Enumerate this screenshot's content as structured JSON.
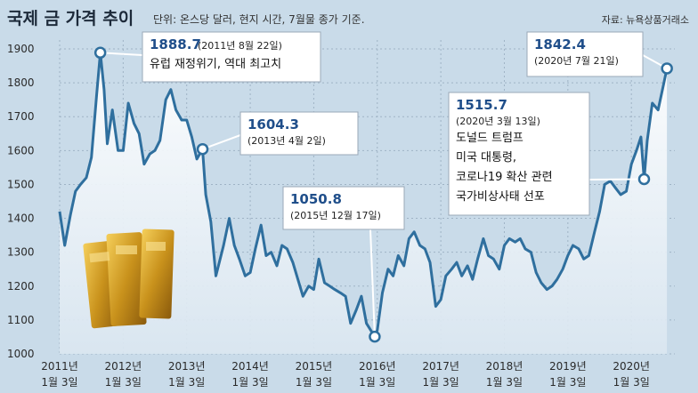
{
  "chart_data": {
    "type": "area",
    "title": "국제 금 가격 추이",
    "unit_note": "단위: 온스당 달러, 현지 시간, 7월물 종가 기준.",
    "source": "자료: 뉴욕상품거래소",
    "ylim": [
      1000,
      1900
    ],
    "yticks": [
      1000,
      1100,
      1200,
      1300,
      1400,
      1500,
      1600,
      1700,
      1800,
      1900
    ],
    "xlim": [
      2011.0,
      2020.6
    ],
    "xticks": [
      {
        "x": 2011.0,
        "year": "2011년",
        "date": "1월 3일"
      },
      {
        "x": 2012.0,
        "year": "2012년",
        "date": "1월 3일"
      },
      {
        "x": 2013.0,
        "year": "2013년",
        "date": "1월 3일"
      },
      {
        "x": 2014.0,
        "year": "2014년",
        "date": "1월 3일"
      },
      {
        "x": 2015.0,
        "year": "2015년",
        "date": "1월 3일"
      },
      {
        "x": 2016.0,
        "year": "2016년",
        "date": "1월 3일"
      },
      {
        "x": 2017.0,
        "year": "2017년",
        "date": "1월 3일"
      },
      {
        "x": 2018.0,
        "year": "2018년",
        "date": "1월 3일"
      },
      {
        "x": 2019.0,
        "year": "2019년",
        "date": "1월 3일"
      },
      {
        "x": 2020.0,
        "year": "2020년",
        "date": "1월 3일"
      }
    ],
    "series": [
      {
        "values": [
          [
            2011.0,
            1420
          ],
          [
            2011.08,
            1320
          ],
          [
            2011.17,
            1410
          ],
          [
            2011.25,
            1480
          ],
          [
            2011.33,
            1500
          ],
          [
            2011.42,
            1520
          ],
          [
            2011.5,
            1580
          ],
          [
            2011.58,
            1760
          ],
          [
            2011.64,
            1888.7
          ],
          [
            2011.7,
            1780
          ],
          [
            2011.75,
            1620
          ],
          [
            2011.83,
            1720
          ],
          [
            2011.92,
            1600
          ],
          [
            2012.0,
            1600
          ],
          [
            2012.08,
            1740
          ],
          [
            2012.17,
            1680
          ],
          [
            2012.25,
            1650
          ],
          [
            2012.33,
            1560
          ],
          [
            2012.42,
            1590
          ],
          [
            2012.5,
            1600
          ],
          [
            2012.58,
            1630
          ],
          [
            2012.67,
            1750
          ],
          [
            2012.75,
            1780
          ],
          [
            2012.83,
            1720
          ],
          [
            2012.92,
            1690
          ],
          [
            2013.0,
            1690
          ],
          [
            2013.08,
            1640
          ],
          [
            2013.16,
            1575
          ],
          [
            2013.25,
            1604.3
          ],
          [
            2013.3,
            1470
          ],
          [
            2013.38,
            1390
          ],
          [
            2013.46,
            1230
          ],
          [
            2013.58,
            1320
          ],
          [
            2013.67,
            1400
          ],
          [
            2013.75,
            1320
          ],
          [
            2013.83,
            1280
          ],
          [
            2013.92,
            1230
          ],
          [
            2014.0,
            1240
          ],
          [
            2014.08,
            1310
          ],
          [
            2014.17,
            1380
          ],
          [
            2014.25,
            1290
          ],
          [
            2014.33,
            1300
          ],
          [
            2014.42,
            1260
          ],
          [
            2014.5,
            1320
          ],
          [
            2014.58,
            1310
          ],
          [
            2014.67,
            1270
          ],
          [
            2014.75,
            1220
          ],
          [
            2014.83,
            1170
          ],
          [
            2014.92,
            1200
          ],
          [
            2015.0,
            1190
          ],
          [
            2015.08,
            1280
          ],
          [
            2015.17,
            1210
          ],
          [
            2015.25,
            1200
          ],
          [
            2015.33,
            1190
          ],
          [
            2015.42,
            1180
          ],
          [
            2015.5,
            1170
          ],
          [
            2015.58,
            1090
          ],
          [
            2015.67,
            1130
          ],
          [
            2015.75,
            1170
          ],
          [
            2015.83,
            1090
          ],
          [
            2015.96,
            1050.8
          ],
          [
            2016.0,
            1070
          ],
          [
            2016.08,
            1180
          ],
          [
            2016.17,
            1250
          ],
          [
            2016.25,
            1230
          ],
          [
            2016.33,
            1290
          ],
          [
            2016.42,
            1260
          ],
          [
            2016.5,
            1340
          ],
          [
            2016.58,
            1360
          ],
          [
            2016.67,
            1320
          ],
          [
            2016.75,
            1310
          ],
          [
            2016.83,
            1270
          ],
          [
            2016.92,
            1140
          ],
          [
            2017.0,
            1160
          ],
          [
            2017.08,
            1230
          ],
          [
            2017.17,
            1250
          ],
          [
            2017.25,
            1270
          ],
          [
            2017.33,
            1230
          ],
          [
            2017.42,
            1260
          ],
          [
            2017.5,
            1220
          ],
          [
            2017.58,
            1280
          ],
          [
            2017.67,
            1340
          ],
          [
            2017.75,
            1290
          ],
          [
            2017.83,
            1280
          ],
          [
            2017.92,
            1250
          ],
          [
            2018.0,
            1320
          ],
          [
            2018.08,
            1340
          ],
          [
            2018.17,
            1330
          ],
          [
            2018.25,
            1340
          ],
          [
            2018.33,
            1310
          ],
          [
            2018.42,
            1300
          ],
          [
            2018.5,
            1240
          ],
          [
            2018.58,
            1210
          ],
          [
            2018.67,
            1190
          ],
          [
            2018.75,
            1200
          ],
          [
            2018.83,
            1220
          ],
          [
            2018.92,
            1250
          ],
          [
            2019.0,
            1290
          ],
          [
            2019.08,
            1320
          ],
          [
            2019.17,
            1310
          ],
          [
            2019.25,
            1280
          ],
          [
            2019.33,
            1290
          ],
          [
            2019.42,
            1360
          ],
          [
            2019.5,
            1420
          ],
          [
            2019.58,
            1500
          ],
          [
            2019.67,
            1510
          ],
          [
            2019.75,
            1490
          ],
          [
            2019.83,
            1470
          ],
          [
            2019.92,
            1480
          ],
          [
            2020.0,
            1560
          ],
          [
            2020.08,
            1600
          ],
          [
            2020.15,
            1640
          ],
          [
            2020.2,
            1515.7
          ],
          [
            2020.25,
            1630
          ],
          [
            2020.33,
            1740
          ],
          [
            2020.42,
            1720
          ],
          [
            2020.5,
            1790
          ],
          [
            2020.56,
            1842.4
          ]
        ]
      }
    ],
    "annotations": [
      {
        "x": 2011.64,
        "y": 1888.7,
        "value": "1888.7",
        "date": "(2011년 8월 22일)",
        "note": [
          "유럽 재정위기, 역대 최고치"
        ]
      },
      {
        "x": 2013.25,
        "y": 1604.3,
        "value": "1604.3",
        "date": "(2013년 4월 2일)",
        "note": []
      },
      {
        "x": 2015.96,
        "y": 1050.8,
        "value": "1050.8",
        "date": "(2015년 12월 17일)",
        "note": []
      },
      {
        "x": 2020.2,
        "y": 1515.7,
        "value": "1515.7",
        "date": "(2020년 3월 13일)",
        "note": [
          "도널드 트럼프",
          "미국 대통령,",
          "코로나19 확산 관련",
          "국가비상사태 선포"
        ]
      },
      {
        "x": 2020.56,
        "y": 1842.4,
        "value": "1842.4",
        "date": "(2020년 7월 21일)",
        "note": []
      }
    ],
    "grid": true
  }
}
